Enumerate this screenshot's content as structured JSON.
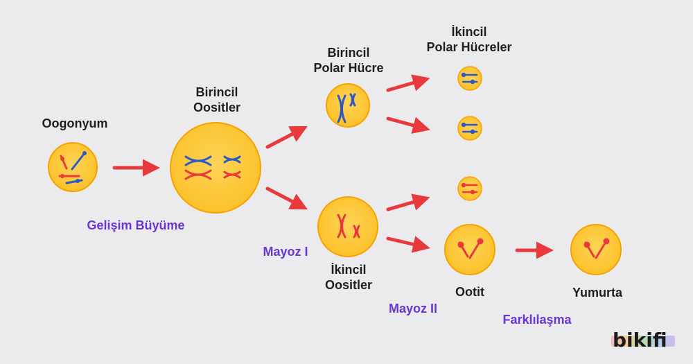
{
  "labels": {
    "oogonyum": "Oogonyum",
    "birincil_oositler_1": "Birincil",
    "birincil_oositler_2": "Oositler",
    "birincil_polar_1": "Birincil",
    "birincil_polar_2": "Polar Hücre",
    "ikincil_polar_1": "İkincil",
    "ikincil_polar_2": "Polar Hücreler",
    "ikincil_oositler_1": "İkincil",
    "ikincil_oositler_2": "Oositler",
    "ootit": "Ootit",
    "yumurta": "Yumurta"
  },
  "stages": {
    "gelisim": "Gelişim Büyüme",
    "mayoz1": "Mayoz I",
    "mayoz2": "Mayoz II",
    "farklilasma": "Farklılaşma"
  },
  "brand": "bikifi",
  "colors": {
    "arrow": "#e8393c",
    "cell_fill": "#fcc93a",
    "cell_stroke": "#f5a300",
    "chrom_red": "#e8393c",
    "chrom_blue": "#2e57c7",
    "stage_text": "#6a35d6"
  }
}
